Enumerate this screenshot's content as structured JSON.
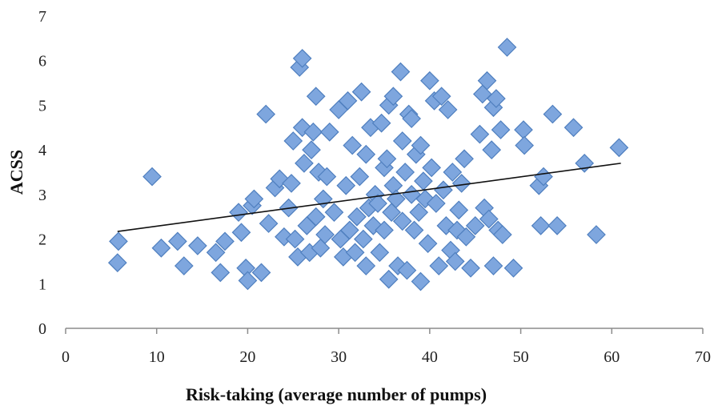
{
  "chart_data": {
    "type": "scatter",
    "title": "",
    "xlabel": "Risk-taking  (average number of pumps)",
    "ylabel": "ACSS",
    "xlim": [
      0,
      70
    ],
    "ylim": [
      0,
      7
    ],
    "x_ticks": [
      0,
      10,
      20,
      30,
      40,
      50,
      60,
      70
    ],
    "y_ticks": [
      0,
      1,
      2,
      3,
      4,
      5,
      6,
      7
    ],
    "x_tick_labels": [
      "0",
      "10",
      "20",
      "30",
      "40",
      "50",
      "60",
      "70"
    ],
    "y_tick_labels": [
      "0",
      "1",
      "2",
      "3",
      "4",
      "5",
      "6",
      "7"
    ],
    "grid": false,
    "legend": "none",
    "colors": {
      "marker_fill": "#7EA6DE",
      "marker_stroke": "#4F7FBF",
      "trendline": "#111111",
      "axis": "#8C8C8C"
    },
    "trendline": {
      "type": "linear",
      "x": [
        5.7,
        61
      ],
      "y": [
        2.17,
        3.7
      ]
    },
    "series": [
      {
        "marker": "diamond",
        "points": [
          [
            5.8,
            1.95
          ],
          [
            5.7,
            1.47
          ],
          [
            9.5,
            3.4
          ],
          [
            10.5,
            1.8
          ],
          [
            12.3,
            1.95
          ],
          [
            13.0,
            1.4
          ],
          [
            14.5,
            1.85
          ],
          [
            16.5,
            1.7
          ],
          [
            17.0,
            1.25
          ],
          [
            17.5,
            1.95
          ],
          [
            19.0,
            2.6
          ],
          [
            19.3,
            2.15
          ],
          [
            19.8,
            1.35
          ],
          [
            20.0,
            1.07
          ],
          [
            20.5,
            2.75
          ],
          [
            20.7,
            2.9
          ],
          [
            21.5,
            1.25
          ],
          [
            22.0,
            4.8
          ],
          [
            22.3,
            2.35
          ],
          [
            23.0,
            3.15
          ],
          [
            23.5,
            3.35
          ],
          [
            24.0,
            2.05
          ],
          [
            24.5,
            2.7
          ],
          [
            24.8,
            3.25
          ],
          [
            25.0,
            4.2
          ],
          [
            25.2,
            2.0
          ],
          [
            25.5,
            1.6
          ],
          [
            25.7,
            5.85
          ],
          [
            26.0,
            6.05
          ],
          [
            26.0,
            4.5
          ],
          [
            26.2,
            3.7
          ],
          [
            26.5,
            2.3
          ],
          [
            26.8,
            1.7
          ],
          [
            27.0,
            4.0
          ],
          [
            27.2,
            4.4
          ],
          [
            27.5,
            2.5
          ],
          [
            27.5,
            5.2
          ],
          [
            27.8,
            3.5
          ],
          [
            28.0,
            1.8
          ],
          [
            28.3,
            2.9
          ],
          [
            28.5,
            2.1
          ],
          [
            28.7,
            3.4
          ],
          [
            29.0,
            4.4
          ],
          [
            29.5,
            2.6
          ],
          [
            30.0,
            4.9
          ],
          [
            30.2,
            2.0
          ],
          [
            30.5,
            1.6
          ],
          [
            30.8,
            3.2
          ],
          [
            31.0,
            5.1
          ],
          [
            31.2,
            2.2
          ],
          [
            31.5,
            4.1
          ],
          [
            31.8,
            1.7
          ],
          [
            32.0,
            2.5
          ],
          [
            32.3,
            3.4
          ],
          [
            32.5,
            5.3
          ],
          [
            32.7,
            2.0
          ],
          [
            33.0,
            3.9
          ],
          [
            33.0,
            1.4
          ],
          [
            33.3,
            2.7
          ],
          [
            33.5,
            4.5
          ],
          [
            33.8,
            2.3
          ],
          [
            34.0,
            3.0
          ],
          [
            34.3,
            2.8
          ],
          [
            34.5,
            1.7
          ],
          [
            34.7,
            4.6
          ],
          [
            35.0,
            3.6
          ],
          [
            35.0,
            2.2
          ],
          [
            35.3,
            3.8
          ],
          [
            35.5,
            1.1
          ],
          [
            35.5,
            5.0
          ],
          [
            35.8,
            2.6
          ],
          [
            36.0,
            5.2
          ],
          [
            36.0,
            3.2
          ],
          [
            36.3,
            2.9
          ],
          [
            36.5,
            1.4
          ],
          [
            36.8,
            5.75
          ],
          [
            37.0,
            4.2
          ],
          [
            37.0,
            2.4
          ],
          [
            37.3,
            3.5
          ],
          [
            37.5,
            1.3
          ],
          [
            37.7,
            4.8
          ],
          [
            38.0,
            4.7
          ],
          [
            38.0,
            3.0
          ],
          [
            38.3,
            2.2
          ],
          [
            38.5,
            3.9
          ],
          [
            38.8,
            2.6
          ],
          [
            39.0,
            1.05
          ],
          [
            39.0,
            4.1
          ],
          [
            39.3,
            3.3
          ],
          [
            39.5,
            2.9
          ],
          [
            39.8,
            1.9
          ],
          [
            40.0,
            5.55
          ],
          [
            40.2,
            3.6
          ],
          [
            40.5,
            5.1
          ],
          [
            40.7,
            2.8
          ],
          [
            41.0,
            1.4
          ],
          [
            41.3,
            5.2
          ],
          [
            41.5,
            3.1
          ],
          [
            41.8,
            2.3
          ],
          [
            42.0,
            4.9
          ],
          [
            42.3,
            1.75
          ],
          [
            42.5,
            3.5
          ],
          [
            42.8,
            1.5
          ],
          [
            43.0,
            2.2
          ],
          [
            43.2,
            2.65
          ],
          [
            43.5,
            3.25
          ],
          [
            43.8,
            3.8
          ],
          [
            44.0,
            2.05
          ],
          [
            44.5,
            1.35
          ],
          [
            45.0,
            2.3
          ],
          [
            45.5,
            4.35
          ],
          [
            45.8,
            5.25
          ],
          [
            46.0,
            2.7
          ],
          [
            46.3,
            5.55
          ],
          [
            46.5,
            2.45
          ],
          [
            46.8,
            4.0
          ],
          [
            47.0,
            4.95
          ],
          [
            47.0,
            1.4
          ],
          [
            47.3,
            5.15
          ],
          [
            47.5,
            2.2
          ],
          [
            47.8,
            4.45
          ],
          [
            48.0,
            2.1
          ],
          [
            48.5,
            6.3
          ],
          [
            49.2,
            1.35
          ],
          [
            50.3,
            4.45
          ],
          [
            50.4,
            4.1
          ],
          [
            52.0,
            3.2
          ],
          [
            52.2,
            2.3
          ],
          [
            52.5,
            3.4
          ],
          [
            53.5,
            4.8
          ],
          [
            54.0,
            2.3
          ],
          [
            55.8,
            4.5
          ],
          [
            57.0,
            3.7
          ],
          [
            58.3,
            2.1
          ],
          [
            60.8,
            4.05
          ]
        ]
      }
    ]
  }
}
